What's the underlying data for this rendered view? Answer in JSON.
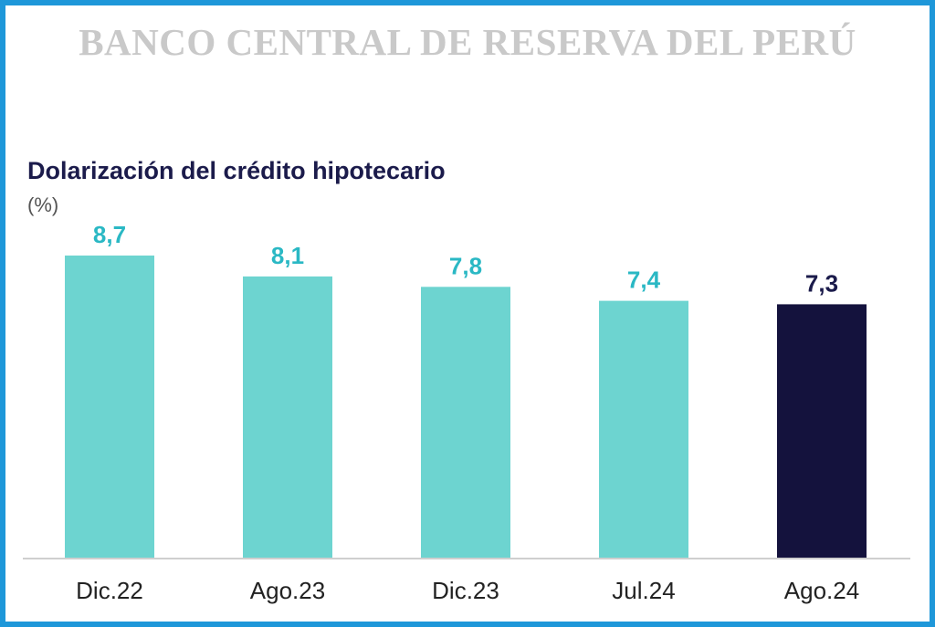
{
  "header": {
    "title": "BANCO CENTRAL DE RESERVA DEL PERÚ"
  },
  "colors": {
    "border": "#1e97d9",
    "bar_default": "#6dd4d0",
    "bar_highlight": "#14123d",
    "label_default": "#2ab8c4",
    "label_highlight": "#1b1b4b",
    "title": "#1b1b4b",
    "header": "#c9c9c9",
    "axis": "#cfcfcf"
  },
  "chart_data": {
    "type": "bar",
    "title": "Dolarización del crédito hipotecario",
    "unit": "(%)",
    "categories": [
      "Dic.22",
      "Ago.23",
      "Dic.23",
      "Jul.24",
      "Ago.24"
    ],
    "values": [
      8.7,
      8.1,
      7.8,
      7.4,
      7.3
    ],
    "value_labels": [
      "8,7",
      "8,1",
      "7,8",
      "7,4",
      "7,3"
    ],
    "highlight": [
      false,
      false,
      false,
      false,
      true
    ],
    "xlabel": "",
    "ylabel": "",
    "ylim": [
      0,
      8.7
    ],
    "grid": false,
    "legend": "none"
  }
}
